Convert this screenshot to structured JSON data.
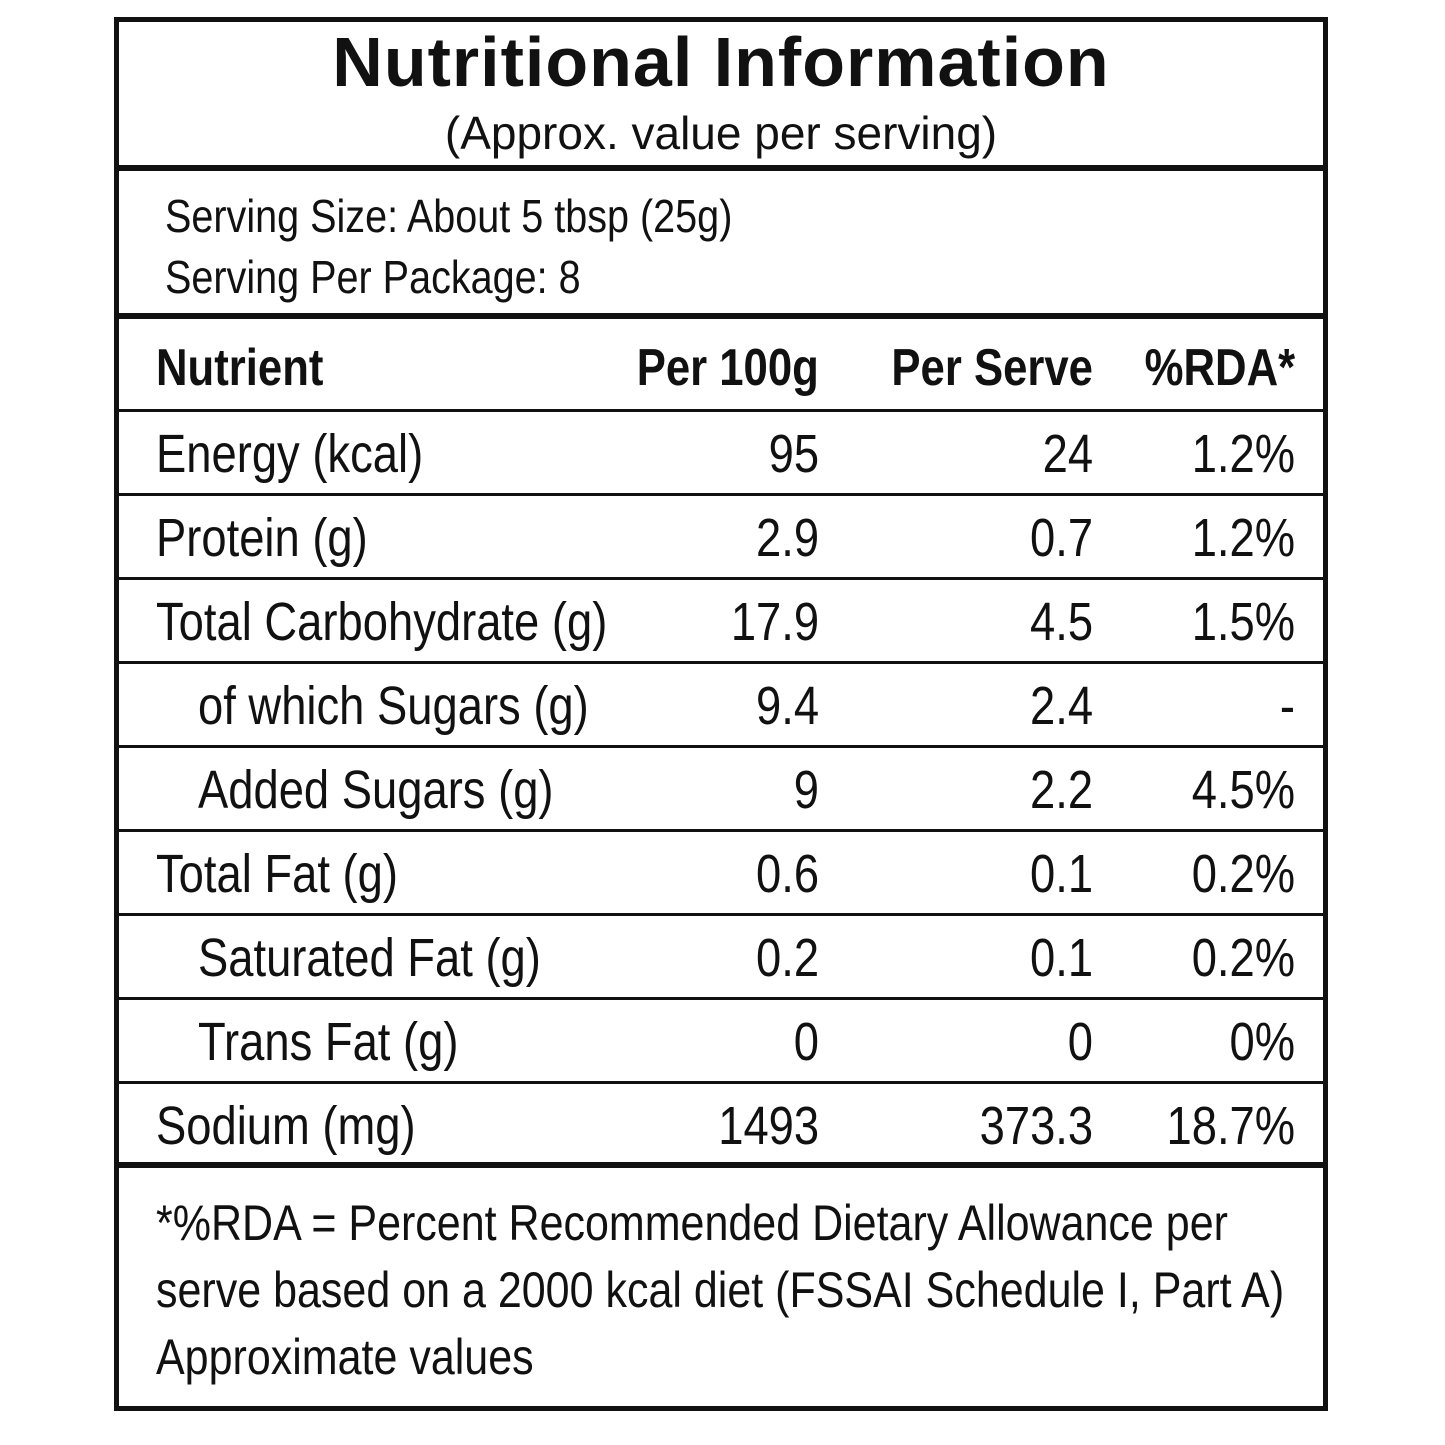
{
  "header": {
    "title": "Nutritional Information",
    "subtitle": "(Approx. value per serving)"
  },
  "serving": {
    "size": "Serving Size: About 5 tbsp (25g)",
    "per_package": "Serving Per Package: 8"
  },
  "table": {
    "columns": [
      "Nutrient",
      "Per 100g",
      "Per Serve",
      "%RDA*"
    ],
    "rows": [
      {
        "nutrient": "Energy (kcal)",
        "per100g": "95",
        "perServe": "24",
        "rda": "1.2%",
        "indent": false
      },
      {
        "nutrient": "Protein (g)",
        "per100g": "2.9",
        "perServe": "0.7",
        "rda": "1.2%",
        "indent": false
      },
      {
        "nutrient": "Total Carbohydrate (g)",
        "per100g": "17.9",
        "perServe": "4.5",
        "rda": "1.5%",
        "indent": false
      },
      {
        "nutrient": "of which Sugars (g)",
        "per100g": "9.4",
        "perServe": "2.4",
        "rda": "-",
        "indent": true
      },
      {
        "nutrient": "Added Sugars (g)",
        "per100g": "9",
        "perServe": "2.2",
        "rda": "4.5%",
        "indent": true
      },
      {
        "nutrient": "Total Fat (g)",
        "per100g": "0.6",
        "perServe": "0.1",
        "rda": "0.2%",
        "indent": false
      },
      {
        "nutrient": "Saturated Fat (g)",
        "per100g": "0.2",
        "perServe": "0.1",
        "rda": "0.2%",
        "indent": true
      },
      {
        "nutrient": "Trans Fat (g)",
        "per100g": "0",
        "perServe": "0",
        "rda": "0%",
        "indent": true
      },
      {
        "nutrient": "Sodium (mg)",
        "per100g": "1493",
        "perServe": "373.3",
        "rda": "18.7%",
        "indent": false
      }
    ]
  },
  "footnote": {
    "lines": [
      "*%RDA = Percent Recommended Dietary Allowance per",
      "serve based on a 2000 kcal diet (FSSAI Schedule I, Part A)",
      "Approximate values"
    ]
  }
}
